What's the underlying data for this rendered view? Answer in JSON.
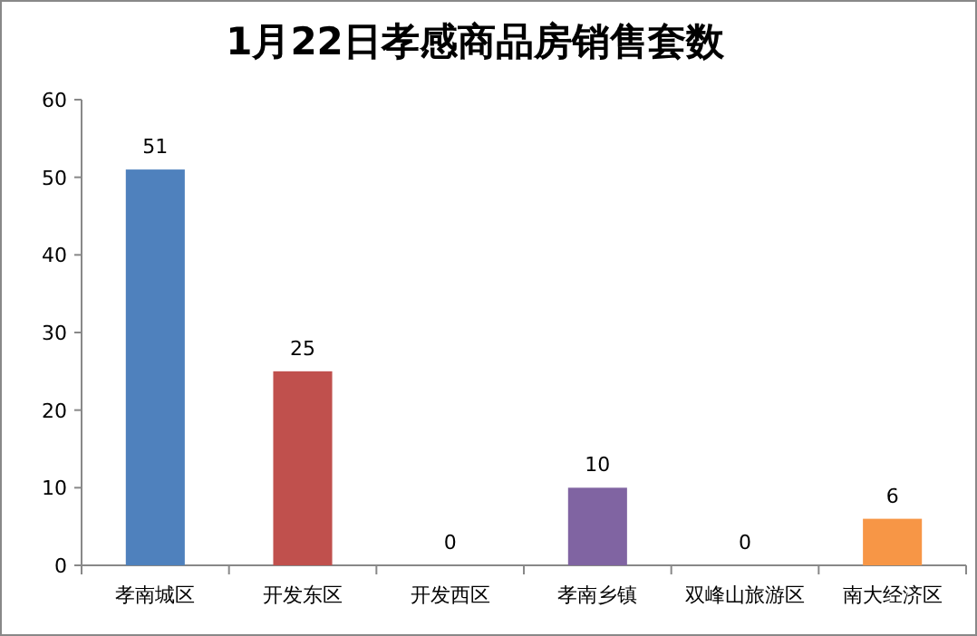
{
  "chart_data": {
    "type": "bar",
    "title": "1月22日孝感商品房销售套数",
    "categories": [
      "孝南城区",
      "开发东区",
      "开发西区",
      "孝南乡镇",
      "双峰山旅游区",
      "南大经济区"
    ],
    "values": [
      51,
      25,
      0,
      10,
      0,
      6
    ],
    "colors": [
      "#4f81bd",
      "#c0504d",
      "#9bbb59",
      "#8064a2",
      "#4bacc6",
      "#f79646"
    ],
    "ylim": [
      0,
      60
    ],
    "yticks": [
      0,
      10,
      20,
      30,
      40,
      50,
      60
    ],
    "data_labels": true,
    "grid": false
  }
}
